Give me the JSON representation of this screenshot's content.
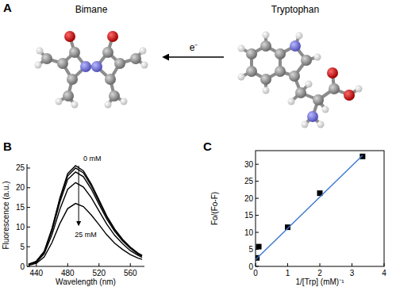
{
  "panel_a": {
    "title": "A",
    "molecules": [
      "Bimane",
      "Tryptophan"
    ],
    "arrow_label": "e⁻"
  },
  "chart_data": [
    {
      "type": "line",
      "title": "B",
      "x_label": "Wavelength (nm)",
      "y_label": "Fluorescence (a.u.)",
      "x": [
        430,
        440,
        450,
        460,
        470,
        480,
        490,
        500,
        510,
        520,
        530,
        540,
        550,
        560,
        570,
        575
      ],
      "series": [
        {
          "color": "#000000",
          "values": [
            0.5,
            1.3,
            3.8,
            9.7,
            17.4,
            23.6,
            25.6,
            24.3,
            21.0,
            16.9,
            12.8,
            9.5,
            6.9,
            4.9,
            3.3,
            2.8
          ]
        },
        {
          "color": "#000000",
          "values": [
            0.5,
            1.3,
            3.8,
            9.5,
            17.0,
            23.0,
            25.0,
            23.8,
            20.5,
            16.5,
            12.5,
            9.3,
            6.8,
            4.8,
            3.3,
            2.8
          ]
        },
        {
          "color": "#000000",
          "values": [
            0.5,
            1.2,
            3.6,
            9.1,
            16.3,
            22.1,
            24.0,
            22.8,
            19.7,
            15.8,
            12.0,
            8.9,
            6.5,
            4.6,
            3.1,
            2.6
          ]
        },
        {
          "color": "#000000",
          "values": [
            0.4,
            1.1,
            3.2,
            8.1,
            14.5,
            19.6,
            21.3,
            20.2,
            17.5,
            14.1,
            10.7,
            7.9,
            5.8,
            4.0,
            2.8,
            2.3
          ]
        },
        {
          "color": "#000000",
          "values": [
            0.3,
            0.8,
            2.4,
            6.1,
            10.9,
            14.7,
            16.0,
            15.2,
            13.1,
            10.6,
            8.0,
            5.9,
            4.3,
            3.0,
            2.1,
            1.8
          ]
        }
      ],
      "annotations": [
        "0 mM",
        "25 mM"
      ],
      "xlim": [
        428,
        578
      ],
      "xticks": [
        440,
        480,
        520,
        560
      ],
      "ylim": [
        0,
        26
      ],
      "yticks": [
        0,
        5,
        10,
        15,
        20,
        25
      ],
      "grid": false
    },
    {
      "type": "scatter",
      "title": "C",
      "x_label": "1/[Trp] (mM)⁻¹",
      "y_label": "Fo/(Fo-F)",
      "series": [
        {
          "type": "scatter",
          "marker": "square",
          "color": "#000000",
          "x": [
            0.04,
            0.1,
            1,
            2,
            3.33
          ],
          "values": [
            2.5,
            5.8,
            11.5,
            21.5,
            32.3
          ]
        },
        {
          "type": "line",
          "line_style": "solid",
          "color": "#3a78d0",
          "x": [
            0,
            3.33
          ],
          "values": [
            2.0,
            32.6
          ]
        }
      ],
      "xlim": [
        0,
        4
      ],
      "xticks": [
        0,
        1,
        2,
        3,
        4
      ],
      "ylim": [
        0,
        34
      ],
      "yticks": [
        0,
        5,
        10,
        15,
        20,
        25,
        30
      ],
      "grid": false
    }
  ]
}
